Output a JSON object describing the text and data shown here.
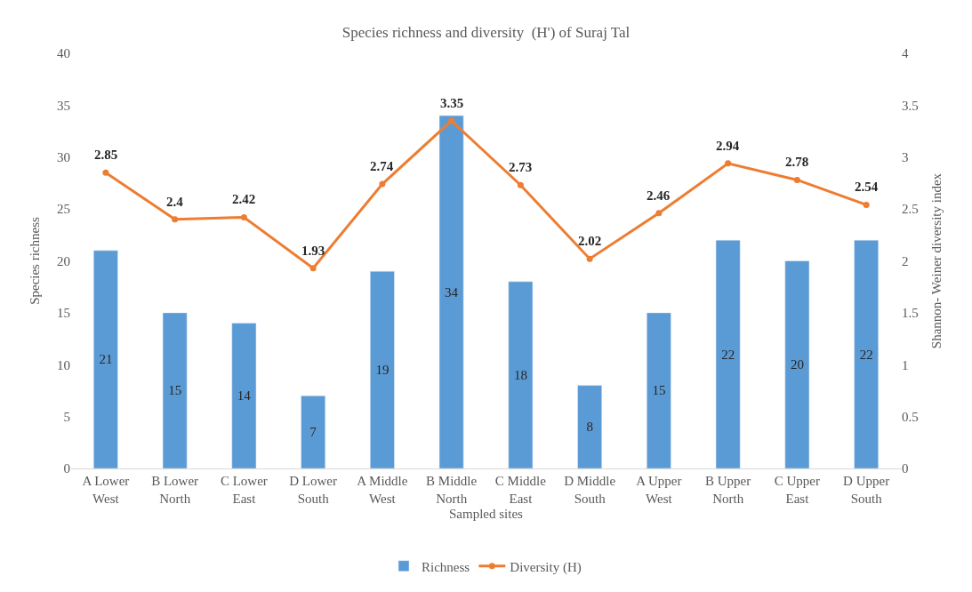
{
  "chart_data": {
    "type": "bar",
    "title": "Species richness and diversity  (H') of Suraj Tal",
    "xlabel": "Sampled sites",
    "ylabel": "Species richness",
    "y2label": "Shannon- Weiner diversity index",
    "categories": [
      "A Lower West",
      "B Lower North",
      "C Lower East",
      "D Lower South",
      "A Middle West",
      "B Middle North",
      "C Middle East",
      "D Middle South",
      "A Upper West",
      "B Upper North",
      "C Upper East",
      "D Upper South"
    ],
    "series": [
      {
        "name": "Richness",
        "color": "#5b9bd5",
        "values": [
          21,
          15,
          14,
          7,
          19,
          34,
          18,
          8,
          15,
          22,
          20,
          22
        ]
      },
      {
        "name": "Diversity (H)",
        "type": "line",
        "axis": "y2",
        "color": "#ed7d31",
        "marker": "circle",
        "values": [
          2.85,
          2.4,
          2.42,
          1.93,
          2.74,
          3.35,
          2.73,
          2.02,
          2.46,
          2.94,
          2.78,
          2.54
        ]
      }
    ],
    "ylim": [
      0,
      40
    ],
    "yticks": [
      0,
      5,
      10,
      15,
      20,
      25,
      30,
      35,
      40
    ],
    "y2lim": [
      0,
      4
    ],
    "y2ticks": [
      0,
      0.5,
      1,
      1.5,
      2,
      2.5,
      3,
      3.5,
      4
    ],
    "data_labels": true,
    "grid": false,
    "legend": "bottom"
  }
}
